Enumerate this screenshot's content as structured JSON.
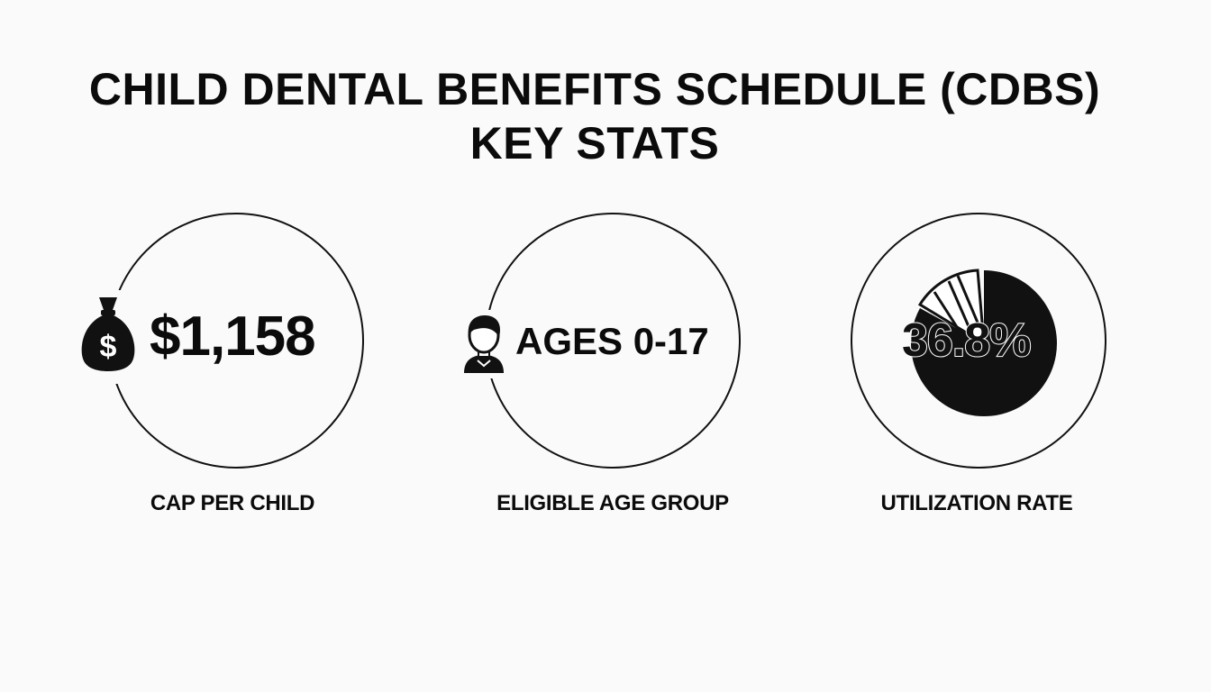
{
  "title": {
    "line1": "CHILD DENTAL BENEFITS SCHEDULE (CDBS)",
    "line2": "KEY STATS"
  },
  "stats": [
    {
      "value": "$1,158",
      "label": "CAP PER CHILD",
      "icon": "money-bag-icon"
    },
    {
      "value": "AGES 0-17",
      "label": "ELIGIBLE AGE GROUP",
      "icon": "person-icon"
    },
    {
      "value": "36.8%",
      "label": "UTILIZATION RATE",
      "icon": "pie-chart-icon",
      "fraction": 0.368
    }
  ],
  "colors": {
    "background": "#fafafa",
    "ink": "#111111"
  }
}
